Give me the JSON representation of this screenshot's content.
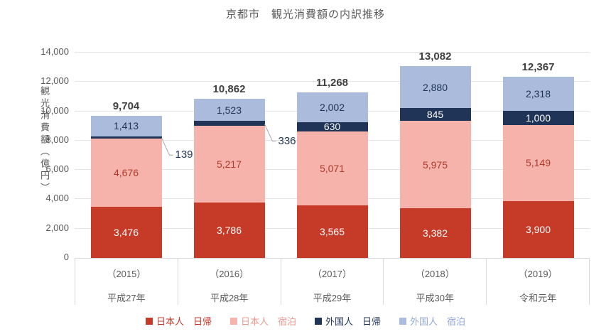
{
  "title": "京都市　観光消費額の内訳推移",
  "y_axis": {
    "title": "観光消費額（億円）",
    "ticks": [
      "0",
      "2,000",
      "4,000",
      "6,000",
      "8,000",
      "10,000",
      "12,000",
      "14,000"
    ]
  },
  "chart_data": {
    "type": "bar",
    "stacked": true,
    "title": "京都市　観光消費額の内訳推移",
    "ylabel": "観光消費額（億円）",
    "ylim": [
      0,
      14000
    ],
    "ytick_step": 2000,
    "grid": true,
    "legend_position": "bottom",
    "categories": [
      {
        "year": "（2015）",
        "era": "平成27年"
      },
      {
        "year": "（2016）",
        "era": "平成28年"
      },
      {
        "year": "（2017）",
        "era": "平成29年"
      },
      {
        "year": "（2018）",
        "era": "平成30年"
      },
      {
        "year": "（2019）",
        "era": "令和元年"
      }
    ],
    "series": [
      {
        "name": "日本人　日帰",
        "color": "#C63A28",
        "label_color": "#FFFFFF",
        "legend_text_color": "#C0392B",
        "values": [
          3476,
          3786,
          3565,
          3382,
          3900
        ],
        "label_outside": [
          false,
          false,
          false,
          false,
          false
        ]
      },
      {
        "name": "日本人　宿泊",
        "color": "#F5B3AC",
        "label_color": "#AE3B2A",
        "legend_text_color": "#EA9A90",
        "values": [
          4676,
          5217,
          5071,
          5975,
          5149
        ],
        "label_outside": [
          false,
          false,
          false,
          false,
          false
        ]
      },
      {
        "name": "外国人　日帰",
        "color": "#1F3456",
        "label_color": "#FFFFFF",
        "legend_text_color": "#1F3456",
        "values": [
          139,
          336,
          630,
          845,
          1000
        ],
        "label_outside": [
          true,
          true,
          false,
          false,
          false
        ]
      },
      {
        "name": "外国人　宿泊",
        "color": "#AABBDC",
        "label_color": "#1F3456",
        "legend_text_color": "#93A9D4",
        "values": [
          1413,
          1523,
          2002,
          2880,
          2318
        ],
        "label_outside": [
          false,
          false,
          false,
          false,
          false
        ]
      }
    ],
    "totals": [
      9704,
      10862,
      11268,
      13082,
      12367
    ],
    "callout_color": "#1F3456",
    "leader_line_color": "#A6A6A6",
    "total_label_color": "#3F3F3F",
    "axis_text_color": "#595959"
  }
}
